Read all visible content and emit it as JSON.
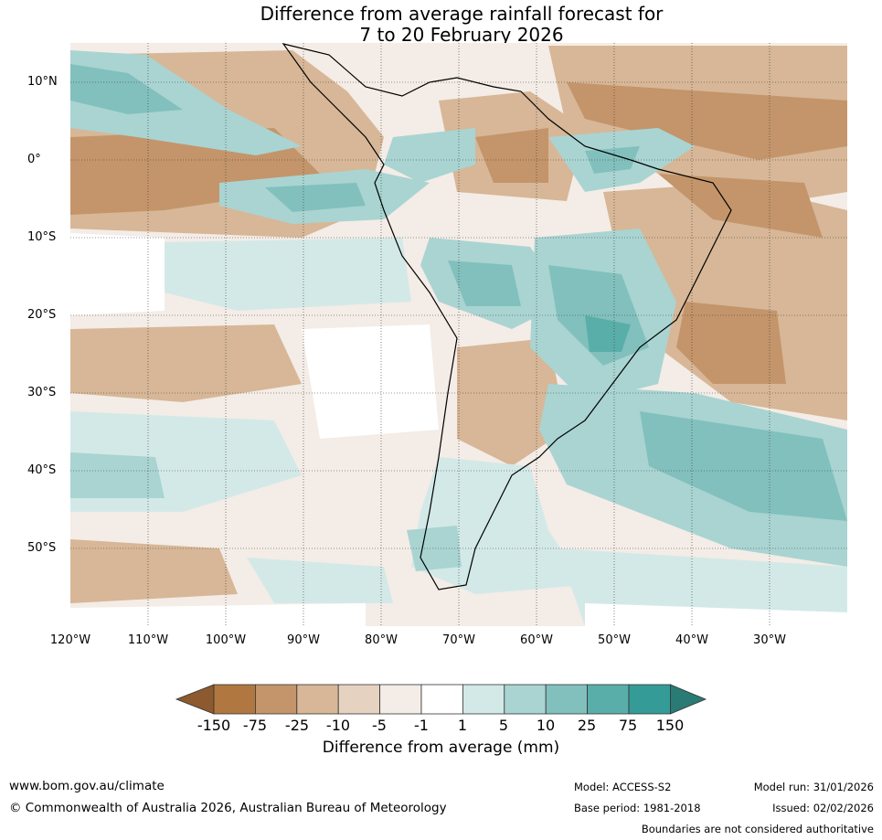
{
  "title": {
    "line1": "Difference from average rainfall forecast for",
    "line2": "7 to 20 February 2026"
  },
  "latitude_labels": [
    "10°N",
    "0°",
    "10°S",
    "20°S",
    "30°S",
    "40°S",
    "50°S"
  ],
  "longitude_labels": [
    "120°W",
    "110°W",
    "100°W",
    "90°W",
    "80°W",
    "70°W",
    "60°W",
    "50°W",
    "40°W",
    "30°W"
  ],
  "colorbar": {
    "ticks": [
      "-150",
      "-75",
      "-25",
      "-10",
      "-5",
      "-1",
      "1",
      "5",
      "10",
      "25",
      "75",
      "150"
    ],
    "colors": [
      "#8c5a2e",
      "#b07840",
      "#c4956a",
      "#d7b797",
      "#e6d2c1",
      "#f4ece6",
      "#ffffff",
      "#d3e9e8",
      "#a9d4d2",
      "#82c0bd",
      "#5aaeaa",
      "#359b96",
      "#2a7a75"
    ],
    "label": "Difference from average (mm)"
  },
  "legend": {
    "label": "Difference from average (mm)"
  },
  "footer": {
    "url": "www.bom.gov.au/climate",
    "copyright": "© Commonwealth of Australia 2026, Australian Bureau of Meteorology",
    "model": "Model: ACCESS-S2",
    "base_period": "Base period: 1981-2018",
    "model_run": "Model run: 31/01/2026",
    "issued": "Issued: 02/02/2026",
    "disclaimer": "Boundaries are not considered authoritative"
  }
}
